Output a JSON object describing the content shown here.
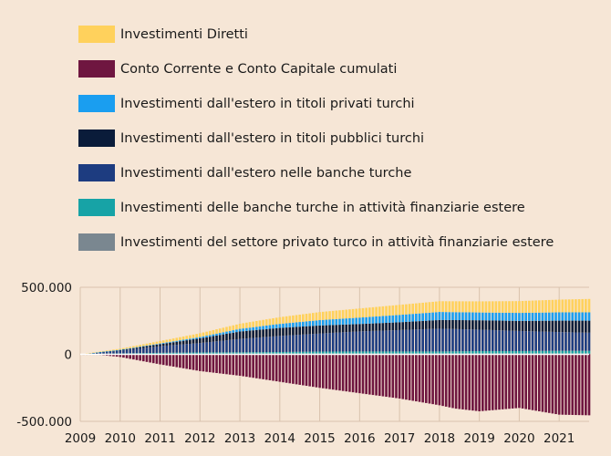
{
  "chart_data": {
    "type": "bar",
    "stacked": true,
    "x_range": [
      2009,
      2021.75
    ],
    "x_ticks": [
      2009,
      2010,
      2011,
      2012,
      2013,
      2014,
      2015,
      2016,
      2017,
      2018,
      2019,
      2020,
      2021
    ],
    "x_tick_labels": [
      "2009",
      "2010",
      "2011",
      "2012",
      "2013",
      "2014",
      "2015",
      "2016",
      "2017",
      "2018",
      "2019",
      "2020",
      "2021"
    ],
    "ylim": [
      -500000,
      500000
    ],
    "y_ticks": [
      500000,
      0,
      -500000
    ],
    "y_tick_labels": [
      "500.000",
      "0",
      "-500.000"
    ],
    "grid": "vertical",
    "legend_position": "top",
    "series": [
      {
        "name": "Investimenti Diretti",
        "color": "#ffd15c",
        "keyframes": [
          [
            2009,
            0
          ],
          [
            2010,
            8000
          ],
          [
            2011,
            18000
          ],
          [
            2012,
            28000
          ],
          [
            2013,
            38000
          ],
          [
            2014,
            50000
          ],
          [
            2015,
            60000
          ],
          [
            2016,
            68000
          ],
          [
            2017,
            75000
          ],
          [
            2018,
            80000
          ],
          [
            2019,
            83000
          ],
          [
            2020,
            88000
          ],
          [
            2021,
            95000
          ],
          [
            2021.75,
            100000
          ]
        ]
      },
      {
        "name": "Conto Corrente e Conto Capitale cumulati",
        "color": "#6f1640",
        "keyframes": [
          [
            2009,
            0
          ],
          [
            2009.5,
            -5000
          ],
          [
            2010,
            -20000
          ],
          [
            2011,
            -75000
          ],
          [
            2012,
            -125000
          ],
          [
            2013,
            -160000
          ],
          [
            2014,
            -205000
          ],
          [
            2015,
            -250000
          ],
          [
            2016,
            -290000
          ],
          [
            2017,
            -330000
          ],
          [
            2018,
            -380000
          ],
          [
            2018.4,
            -405000
          ],
          [
            2019,
            -425000
          ],
          [
            2020,
            -400000
          ],
          [
            2021,
            -450000
          ],
          [
            2021.75,
            -455000
          ]
        ]
      },
      {
        "name": "Investimenti dall'estero in titoli privati turchi",
        "color": "#1a9ef0",
        "keyframes": [
          [
            2009,
            0
          ],
          [
            2010,
            2000
          ],
          [
            2011,
            5000
          ],
          [
            2012,
            10000
          ],
          [
            2013,
            20000
          ],
          [
            2014,
            30000
          ],
          [
            2015,
            40000
          ],
          [
            2016,
            48000
          ],
          [
            2017,
            55000
          ],
          [
            2018,
            60000
          ],
          [
            2019,
            58000
          ],
          [
            2020,
            60000
          ],
          [
            2021,
            62000
          ],
          [
            2021.75,
            62000
          ]
        ]
      },
      {
        "name": "Investimenti dall'estero in titoli pubblici turchi",
        "color": "#0a1c3a",
        "keyframes": [
          [
            2009,
            0
          ],
          [
            2010,
            5000
          ],
          [
            2011,
            15000
          ],
          [
            2012,
            35000
          ],
          [
            2013,
            55000
          ],
          [
            2014,
            60000
          ],
          [
            2015,
            60000
          ],
          [
            2016,
            55000
          ],
          [
            2017,
            58000
          ],
          [
            2018,
            65000
          ],
          [
            2019,
            70000
          ],
          [
            2020,
            75000
          ],
          [
            2021,
            85000
          ],
          [
            2021.75,
            90000
          ]
        ]
      },
      {
        "name": "Investimenti dall'estero nelle banche turche",
        "color": "#1d3c80",
        "keyframes": [
          [
            2009,
            0
          ],
          [
            2010,
            20000
          ],
          [
            2011,
            50000
          ],
          [
            2012,
            70000
          ],
          [
            2013,
            100000
          ],
          [
            2014,
            120000
          ],
          [
            2015,
            135000
          ],
          [
            2016,
            150000
          ],
          [
            2017,
            160000
          ],
          [
            2018,
            170000
          ],
          [
            2019,
            160000
          ],
          [
            2020,
            150000
          ],
          [
            2021,
            140000
          ],
          [
            2021.75,
            135000
          ]
        ]
      },
      {
        "name": "Investimenti delle banche turche in attività finanziarie estere",
        "color": "#17a3a6",
        "keyframes": [
          [
            2009,
            0
          ],
          [
            2010,
            5000
          ],
          [
            2011,
            8000
          ],
          [
            2012,
            10000
          ],
          [
            2013,
            10000
          ],
          [
            2014,
            12000
          ],
          [
            2015,
            15000
          ],
          [
            2016,
            15000
          ],
          [
            2017,
            15000
          ],
          [
            2018,
            15000
          ],
          [
            2019,
            18000
          ],
          [
            2020,
            18000
          ],
          [
            2021,
            20000
          ],
          [
            2021.75,
            20000
          ]
        ]
      },
      {
        "name": "Investimenti del settore privato turco in attività finanziarie estere",
        "color": "#7a8790",
        "keyframes": [
          [
            2009,
            0
          ],
          [
            2010,
            2000
          ],
          [
            2011,
            3000
          ],
          [
            2012,
            4000
          ],
          [
            2013,
            5000
          ],
          [
            2014,
            5000
          ],
          [
            2015,
            5000
          ],
          [
            2016,
            6000
          ],
          [
            2017,
            6000
          ],
          [
            2018,
            6000
          ],
          [
            2019,
            6000
          ],
          [
            2020,
            6000
          ],
          [
            2021,
            6000
          ],
          [
            2021.75,
            6000
          ]
        ]
      }
    ]
  }
}
